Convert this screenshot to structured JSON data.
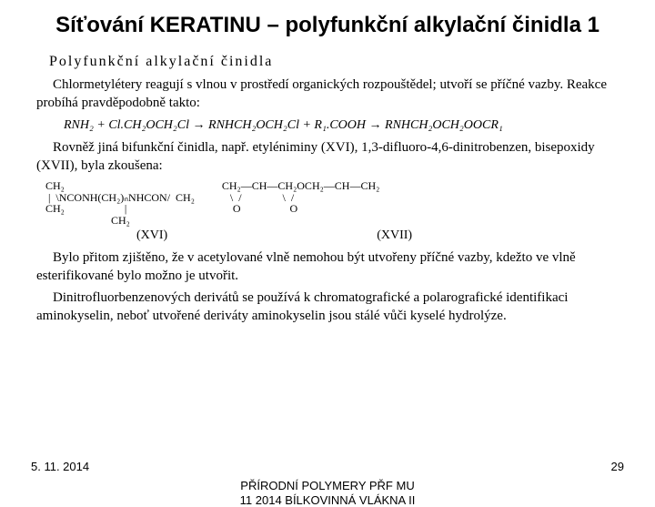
{
  "title": "Síťování KERATINU – polyfunkční alkylační činidla 1",
  "subheading": "Polyfunkční alkylační činidla",
  "p1": "Chlormetylétery reagují s vlnou v prostředí organických rozpouštědel; utvoří se příčné vazby. Reakce probíhá pravděpodobně takto:",
  "eq": "RNH₂ + Cl.CH₂OCH₂Cl  →  RNHCH₂OCH₂Cl + R₁.COOH  →  RNHCH₂OCH₂OOCR₁",
  "p2": "Rovněž jiná bifunkční činidla, např. etyléniminy (XVI), 1,3-difluoro-4,6-dinitrobenzen, bisepoxidy (XVII), byla zkoušena:",
  "structA": "CH₂\n |  \\NCONH(CH₂)ₙNHCON/  CH₂\nCH₂                      | \n                        CH₂",
  "structB": "CH₂—CH—CH₂OCH₂—CH—CH₂\n   \\  /               \\  /\n    O                  O",
  "labelA": "(XVI)",
  "labelB": "(XVII)",
  "p3": "Bylo přitom zjištěno, že v acetylované vlně nemohou být utvořeny příčné vazby, kdežto ve vlně esterifikované bylo možno je utvořit.",
  "p4": "Dinitrofluorbenzenových derivátů se používá k chromatografické a polarografické identifikaci aminokyselin, neboť utvořené deriváty aminokyselin jsou stálé vůči kyselé hydrolýze.",
  "footer": {
    "date": "5. 11. 2014",
    "center1": "PŘÍRODNÍ POLYMERY PŘF MU",
    "center2": "11 2014 BÍLKOVINNÁ VLÁKNA II",
    "page": "29"
  },
  "colors": {
    "bg": "#ffffff",
    "text": "#000000"
  }
}
